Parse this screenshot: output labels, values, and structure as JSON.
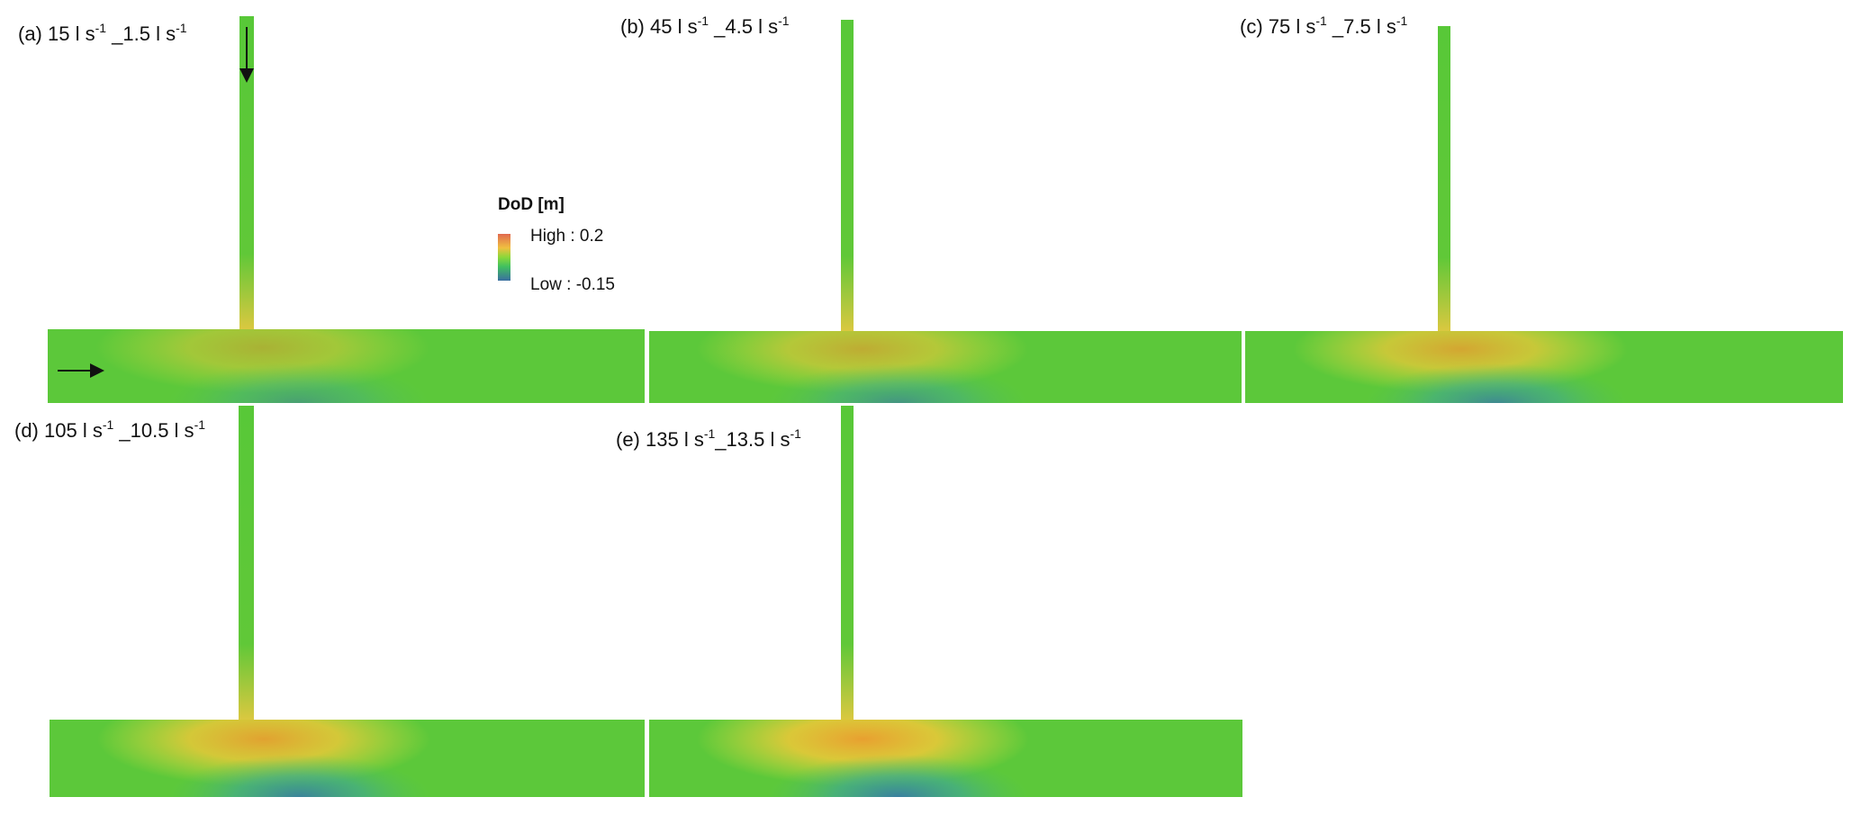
{
  "legend": {
    "title": "DoD [m]",
    "high": "High : 0.2",
    "low": "Low : -0.15"
  },
  "panels": [
    {
      "label": [
        "(a) 15 l s",
        "-1",
        " _1.5 l s",
        "-1"
      ]
    },
    {
      "label": [
        "(b) 45 l s",
        "-1",
        " _4.5 l s",
        "-1"
      ]
    },
    {
      "label": [
        "(c) 75 l s",
        "-1",
        " _7.5 l s",
        "-1"
      ]
    },
    {
      "label": [
        "(d) 105 l s",
        "-1",
        " _10.5 l s",
        "-1"
      ]
    },
    {
      "label": [
        "(e) 135 l s",
        "-1",
        "_13.5 l s",
        "-1"
      ]
    }
  ]
}
